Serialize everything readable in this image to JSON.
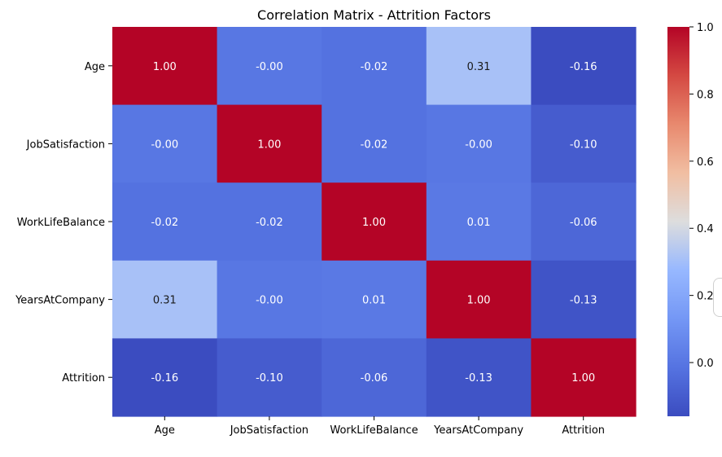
{
  "chart_data": {
    "type": "heatmap",
    "title": "Correlation Matrix - Attrition Factors",
    "xlabel": "",
    "ylabel": "",
    "categories": [
      "Age",
      "JobSatisfaction",
      "WorkLifeBalance",
      "YearsAtCompany",
      "Attrition"
    ],
    "matrix": [
      [
        1.0,
        -0.0,
        -0.02,
        0.31,
        -0.16
      ],
      [
        -0.0,
        1.0,
        -0.02,
        -0.0,
        -0.1
      ],
      [
        -0.02,
        -0.02,
        1.0,
        0.01,
        -0.06
      ],
      [
        0.31,
        -0.0,
        0.01,
        1.0,
        -0.13
      ],
      [
        -0.16,
        -0.1,
        -0.06,
        -0.13,
        1.0
      ]
    ],
    "labels": [
      [
        "1.00",
        "-0.00",
        "-0.02",
        "0.31",
        "-0.16"
      ],
      [
        "-0.00",
        "1.00",
        "-0.02",
        "-0.00",
        "-0.10"
      ],
      [
        "-0.02",
        "-0.02",
        "1.00",
        "0.01",
        "-0.06"
      ],
      [
        "0.31",
        "-0.00",
        "0.01",
        "1.00",
        "-0.13"
      ],
      [
        "-0.16",
        "-0.10",
        "-0.06",
        "-0.13",
        "1.00"
      ]
    ],
    "colorbar": {
      "vmin": -0.16,
      "vmax": 1.0,
      "ticks": [
        0.0,
        0.2,
        0.4,
        0.6,
        0.8,
        1.0
      ],
      "tick_labels": [
        "0.0",
        "0.2",
        "0.4",
        "0.6",
        "0.8",
        "1.0"
      ],
      "colormap": "coolwarm"
    },
    "grid": false,
    "legend": "colorbar-right"
  }
}
